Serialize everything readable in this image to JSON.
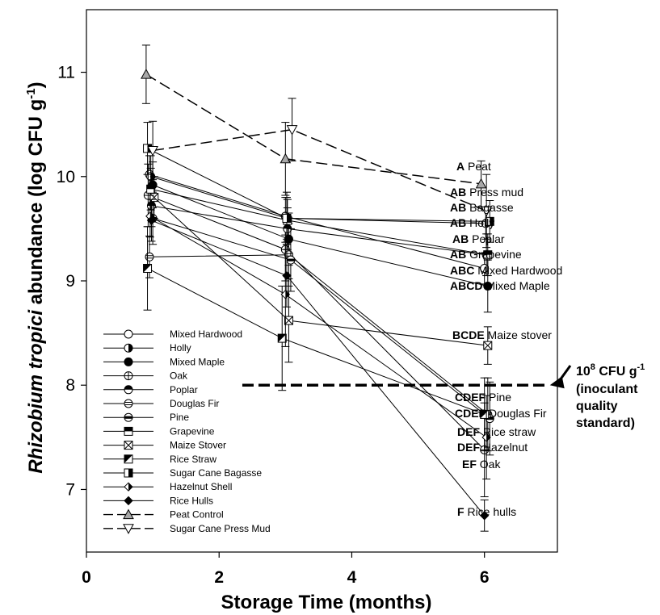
{
  "chart_data": {
    "type": "line",
    "xlabel": "Storage Time (months)",
    "ylabel_italic": "Rhizobium tropici",
    "ylabel_rest": " abundance (log CFU g",
    "ylabel_sup": "-1",
    "ylabel_close": ")",
    "xlim": [
      0,
      7.1
    ],
    "ylim": [
      6.4,
      11.6
    ],
    "x_ticks": [
      0,
      2,
      4,
      6
    ],
    "x_tick_labels": [
      "0",
      "2",
      "4",
      "6"
    ],
    "y_ticks": [
      7,
      8,
      9,
      10,
      11
    ],
    "y_tick_labels": [
      "7",
      "8",
      "9",
      "10",
      "11"
    ],
    "grid": false,
    "legend_position": "lower-left",
    "series": [
      {
        "name": "Mixed Hardwood",
        "marker": "circle-open",
        "dash": "solid",
        "x": [
          0.95,
          3.0,
          6.0
        ],
        "y": [
          10.02,
          9.62,
          9.12
        ],
        "err": [
          0.18,
          0.18,
          0.15
        ]
      },
      {
        "name": "Holly",
        "marker": "circle-half-vert",
        "dash": "solid",
        "x": [
          0.97,
          3.02,
          6.02
        ],
        "y": [
          10.0,
          9.6,
          9.55
        ],
        "err": [
          0.2,
          0.2,
          0.15
        ]
      },
      {
        "name": "Mixed Maple",
        "marker": "circle-filled",
        "dash": "solid",
        "x": [
          1.0,
          3.05,
          6.05
        ],
        "y": [
          9.92,
          9.4,
          8.95
        ],
        "err": [
          0.22,
          0.25,
          0.25
        ]
      },
      {
        "name": "Oak",
        "marker": "circle-cross",
        "dash": "solid",
        "x": [
          0.93,
          3.0,
          6.0
        ],
        "y": [
          9.82,
          9.3,
          7.38
        ],
        "err": [
          0.3,
          0.3,
          0.45
        ]
      },
      {
        "name": "Poplar",
        "marker": "circle-half-horiz",
        "dash": "solid",
        "x": [
          0.98,
          3.03,
          6.03
        ],
        "y": [
          9.72,
          9.5,
          9.25
        ],
        "err": [
          0.2,
          0.2,
          0.2
        ]
      },
      {
        "name": "Douglas Fir",
        "marker": "circle-lines",
        "dash": "solid",
        "x": [
          0.95,
          3.05,
          6.05
        ],
        "y": [
          9.23,
          9.25,
          7.72
        ],
        "err": [
          0.2,
          0.3,
          0.35
        ]
      },
      {
        "name": "Pine",
        "marker": "circle-bar",
        "dash": "solid",
        "x": [
          1.0,
          3.08,
          6.08
        ],
        "y": [
          9.6,
          9.2,
          7.68
        ],
        "err": [
          0.25,
          0.3,
          0.35
        ]
      },
      {
        "name": "Grapevine",
        "marker": "square-half-top",
        "dash": "solid",
        "x": [
          0.97,
          3.03,
          6.05
        ],
        "y": [
          9.88,
          9.58,
          9.25
        ],
        "err": [
          0.2,
          0.2,
          0.2
        ]
      },
      {
        "name": "Maize Stover",
        "marker": "square-x",
        "dash": "solid",
        "x": [
          1.02,
          3.05,
          6.05
        ],
        "y": [
          9.8,
          8.62,
          8.38
        ],
        "err": [
          0.2,
          0.4,
          0.18
        ]
      },
      {
        "name": "Rice Straw",
        "marker": "square-diag",
        "dash": "solid",
        "x": [
          0.92,
          2.95,
          6.0
        ],
        "y": [
          9.12,
          8.45,
          7.72
        ],
        "err": [
          0.4,
          0.5,
          0.35
        ]
      },
      {
        "name": "Sugar Cane Bagasse",
        "marker": "square-half-right",
        "dash": "solid",
        "x": [
          0.92,
          3.02,
          6.08
        ],
        "y": [
          10.27,
          9.6,
          9.57
        ],
        "err": [
          0.25,
          0.25,
          0.2
        ]
      },
      {
        "name": "Hazelnut Shell",
        "marker": "diamond-half",
        "dash": "solid",
        "x": [
          0.96,
          3.0,
          6.03
        ],
        "y": [
          9.62,
          8.87,
          7.5
        ],
        "err": [
          0.2,
          0.5,
          0.4
        ]
      },
      {
        "name": "Rice Hulls",
        "marker": "diamond-filled",
        "dash": "solid",
        "x": [
          0.98,
          3.02,
          6.0
        ],
        "y": [
          9.58,
          9.05,
          6.75
        ],
        "err": [
          0.2,
          0.3,
          0.15
        ]
      },
      {
        "name": "Peat Control",
        "marker": "triangle-up-gray",
        "dash": "long-dash",
        "x": [
          0.9,
          3.0,
          5.95
        ],
        "y": [
          10.98,
          10.17,
          9.93
        ],
        "err": [
          0.28,
          0.35,
          0.22
        ]
      },
      {
        "name": "Sugar Cane Press Mud",
        "marker": "triangle-down-open",
        "dash": "long-dash",
        "x": [
          1.0,
          3.1,
          6.03
        ],
        "y": [
          10.25,
          10.45,
          9.67
        ],
        "err": [
          0.28,
          0.3,
          0.35
        ]
      }
    ],
    "standard_line": {
      "y": 8.0,
      "x_range": [
        2.35,
        6.95
      ]
    },
    "standard_text": {
      "line1_base": "10",
      "line1_sup": "8",
      "line1_rest": " CFU g",
      "line1_sup2": "-1",
      "line2": "(inoculant",
      "line3": "quality",
      "line4": "standard)"
    },
    "annotations": [
      {
        "letters": "A",
        "label": " Peat"
      },
      {
        "letters": "AB",
        "label": " Press mud"
      },
      {
        "letters": "AB",
        "label": " Bagasse"
      },
      {
        "letters": "AB",
        "label": " Holly"
      },
      {
        "letters": "AB",
        "label": " Poplar"
      },
      {
        "letters": "AB",
        "label": " Grapevine"
      },
      {
        "letters": "ABC",
        "label": " Mixed Hardwood"
      },
      {
        "letters": "ABCD",
        "label": " Mixed Maple"
      },
      {
        "letters": "BCDE",
        "label": " Maize stover"
      },
      {
        "letters": "CDEF",
        "label": " Pine"
      },
      {
        "letters": "CDEF",
        "label": " Douglas Fir"
      },
      {
        "letters": "DEF",
        "label": " Rice straw"
      },
      {
        "letters": "DEF",
        "label": " Hazelnut"
      },
      {
        "letters": "EF",
        "label": " Oak"
      },
      {
        "letters": "F",
        "label": " Rice hulls"
      }
    ]
  }
}
